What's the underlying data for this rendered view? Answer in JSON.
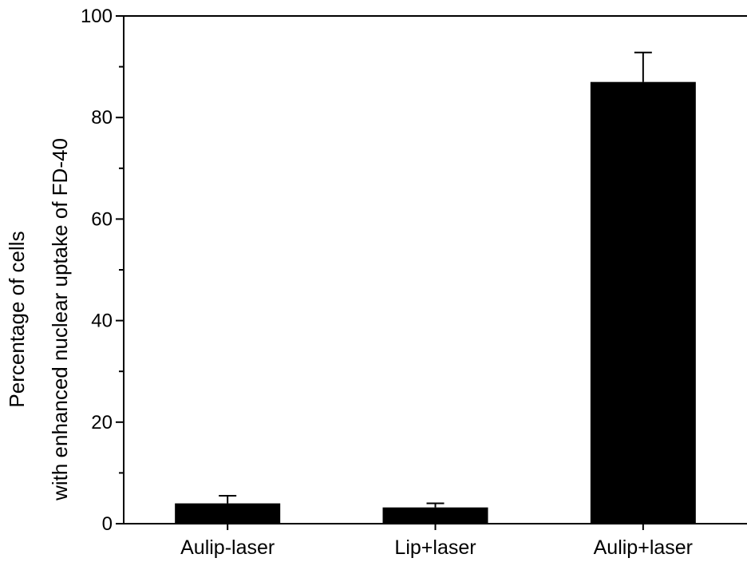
{
  "chart_data": {
    "type": "bar",
    "title": "",
    "xlabel": "",
    "ylabel_line1": "Percentage of cells",
    "ylabel_line2": "with enhanced nuclear uptake of FD-40",
    "categories": [
      "Aulip-laser",
      "Lip+laser",
      "Aulip+laser"
    ],
    "values": [
      4,
      3.2,
      87
    ],
    "errors": [
      1.5,
      0.8,
      5.8
    ],
    "ylim": [
      0,
      100
    ],
    "yticks": [
      0,
      20,
      40,
      60,
      80,
      100
    ],
    "grid": false,
    "bar_color": "#000000"
  }
}
